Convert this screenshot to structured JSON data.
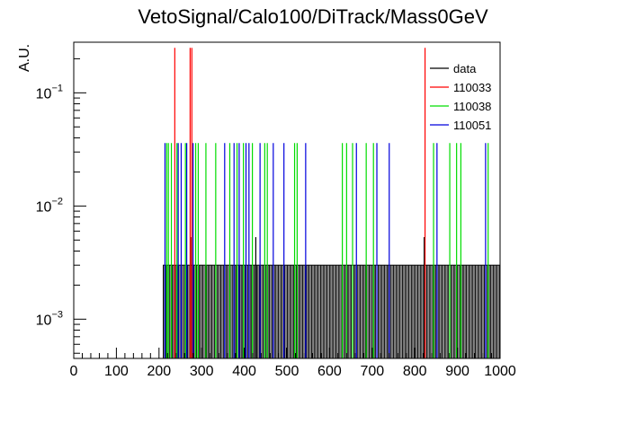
{
  "chart_data": {
    "type": "histogram",
    "title": "VetoSignal/Calo100/DiTrack/Mass0GeV",
    "xlabel": "",
    "ylabel": "A.U.",
    "x_ticks": [
      "0",
      "100",
      "200",
      "300",
      "400",
      "500",
      "600",
      "700",
      "800",
      "900",
      "1000"
    ],
    "y_ticks": [
      {
        "base": "10",
        "exp": "−1",
        "value": 0.1
      },
      {
        "base": "10",
        "exp": "−2",
        "value": 0.01
      },
      {
        "base": "10",
        "exp": "−3",
        "value": 0.001
      }
    ],
    "xlim": [
      0,
      1000
    ],
    "ylim": [
      0.00045,
      0.28
    ],
    "yscale": "log",
    "grid": false,
    "legend_position": "top-right",
    "series": [
      {
        "name": "data",
        "color": "#000000",
        "spikes": [
          {
            "x": 276,
            "y": 0.0053
          },
          {
            "x": 427,
            "y": 0.0053
          },
          {
            "x": 822,
            "y": 0.0053
          }
        ],
        "baseline_range": [
          210,
          1000
        ],
        "baseline_value": 0.003
      },
      {
        "name": "110033",
        "color": "#ff0000",
        "spikes": [
          {
            "x": 237,
            "y": 0.25
          },
          {
            "x": 273,
            "y": 0.25
          },
          {
            "x": 277,
            "y": 0.25
          },
          {
            "x": 824,
            "y": 0.25
          }
        ]
      },
      {
        "name": "110038",
        "color": "#00dd00",
        "spikes": [
          {
            "x": 218,
            "y": 0.036
          },
          {
            "x": 222,
            "y": 0.036
          },
          {
            "x": 229,
            "y": 0.036
          },
          {
            "x": 242,
            "y": 0.036
          },
          {
            "x": 262,
            "y": 0.036
          },
          {
            "x": 286,
            "y": 0.036
          },
          {
            "x": 292,
            "y": 0.036
          },
          {
            "x": 310,
            "y": 0.036
          },
          {
            "x": 333,
            "y": 0.036
          },
          {
            "x": 366,
            "y": 0.036
          },
          {
            "x": 383,
            "y": 0.036
          },
          {
            "x": 398,
            "y": 0.036
          },
          {
            "x": 419,
            "y": 0.036
          },
          {
            "x": 448,
            "y": 0.036
          },
          {
            "x": 454,
            "y": 0.036
          },
          {
            "x": 518,
            "y": 0.036
          },
          {
            "x": 524,
            "y": 0.036
          },
          {
            "x": 630,
            "y": 0.036
          },
          {
            "x": 640,
            "y": 0.036
          },
          {
            "x": 654,
            "y": 0.036
          },
          {
            "x": 686,
            "y": 0.036
          },
          {
            "x": 703,
            "y": 0.036
          },
          {
            "x": 844,
            "y": 0.036
          },
          {
            "x": 882,
            "y": 0.036
          },
          {
            "x": 898,
            "y": 0.036
          },
          {
            "x": 908,
            "y": 0.036
          },
          {
            "x": 972,
            "y": 0.036
          }
        ]
      },
      {
        "name": "110051",
        "color": "#0000dd",
        "spikes": [
          {
            "x": 214,
            "y": 0.036
          },
          {
            "x": 245,
            "y": 0.036
          },
          {
            "x": 252,
            "y": 0.036
          },
          {
            "x": 265,
            "y": 0.036
          },
          {
            "x": 280,
            "y": 0.036
          },
          {
            "x": 354,
            "y": 0.036
          },
          {
            "x": 376,
            "y": 0.036
          },
          {
            "x": 388,
            "y": 0.036
          },
          {
            "x": 404,
            "y": 0.036
          },
          {
            "x": 411,
            "y": 0.036
          },
          {
            "x": 437,
            "y": 0.036
          },
          {
            "x": 468,
            "y": 0.036
          },
          {
            "x": 493,
            "y": 0.036
          },
          {
            "x": 544,
            "y": 0.036
          },
          {
            "x": 663,
            "y": 0.036
          },
          {
            "x": 711,
            "y": 0.036
          },
          {
            "x": 740,
            "y": 0.036
          },
          {
            "x": 852,
            "y": 0.036
          },
          {
            "x": 966,
            "y": 0.036
          }
        ]
      }
    ]
  }
}
